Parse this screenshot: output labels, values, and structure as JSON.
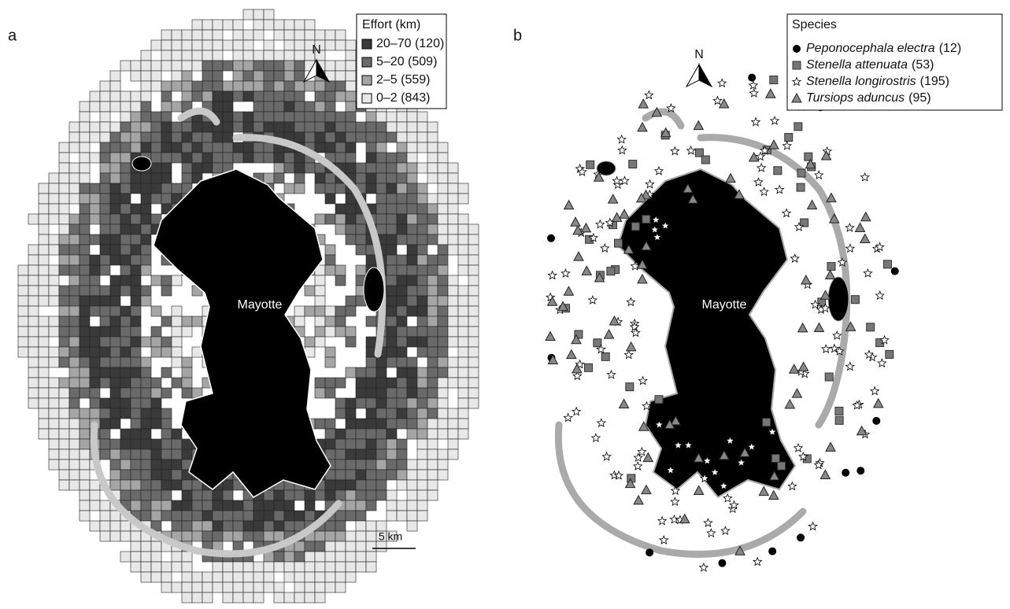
{
  "panel_a": {
    "label": "a",
    "legend": {
      "title": "Effort (km)",
      "items": [
        "20–70 (120)",
        "5–20 (509)",
        "2–5 (559)",
        "0–2 (843)"
      ]
    },
    "north": "N",
    "island": "Mayotte",
    "scale": "5 km"
  },
  "panel_b": {
    "label": "b",
    "legend": {
      "title": "Species",
      "items": [
        {
          "name": "Peponocephala electra",
          "count": "(12)"
        },
        {
          "name": "Stenella attenuata",
          "count": "(53)"
        },
        {
          "name": "Stenella longirostris",
          "count": "(195)"
        },
        {
          "name": "Tursiops aduncus",
          "count": "(95)"
        }
      ]
    },
    "north": "N",
    "island": "Mayotte"
  }
}
